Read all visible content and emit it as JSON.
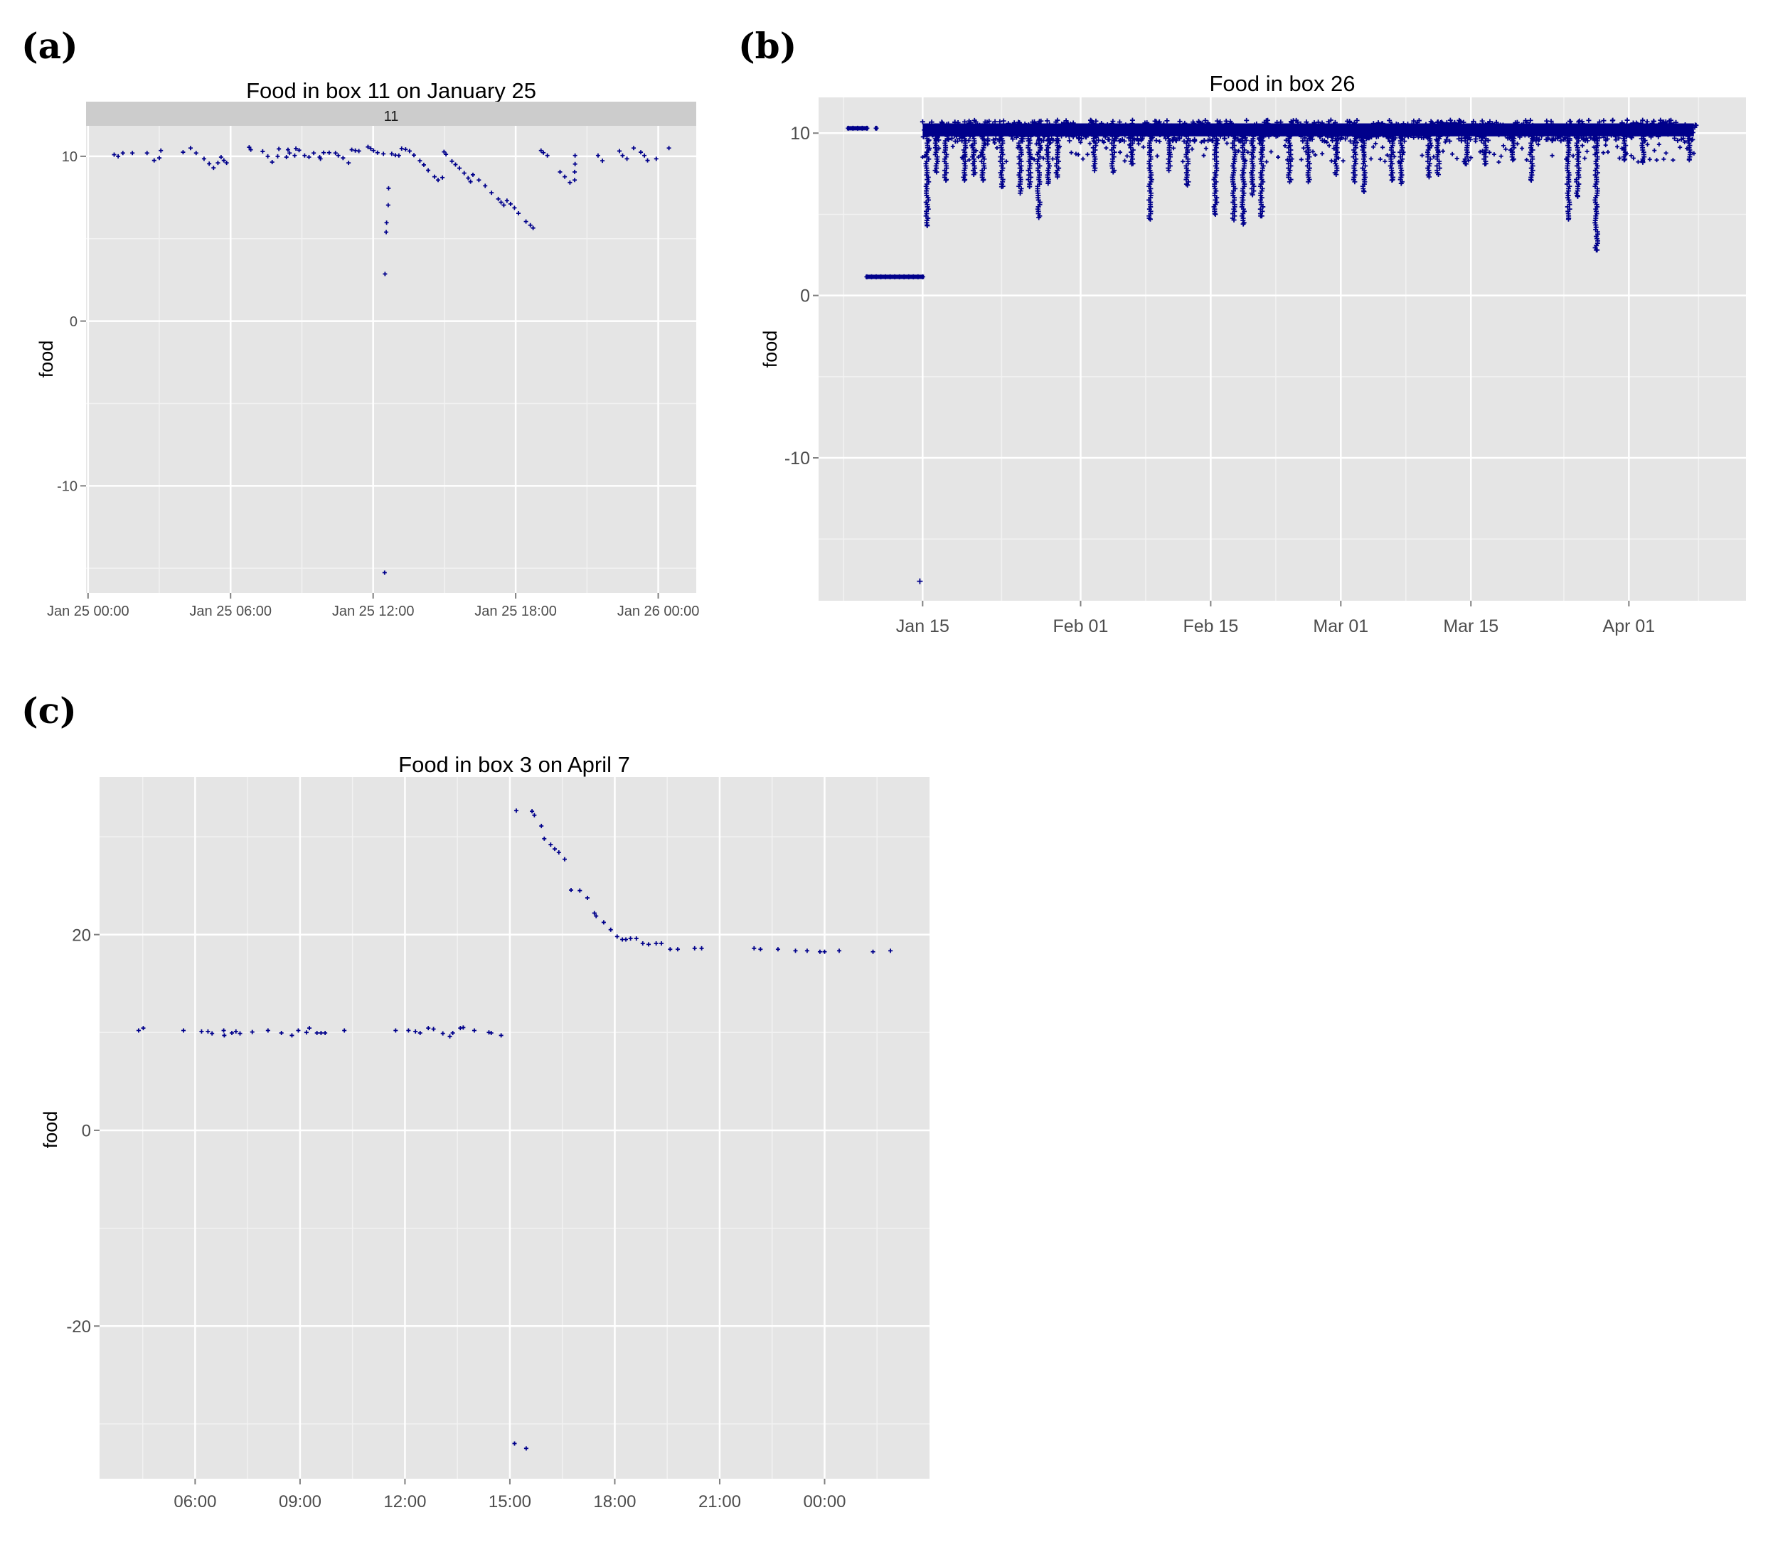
{
  "chart_data": [
    {
      "panel_label": "(a)",
      "type": "scatter",
      "title": "Food in box 11 on January 25",
      "facet_strip": "11",
      "xlabel": "",
      "ylabel": "food",
      "x_ticks": [
        "Jan 25 00:00",
        "Jan 25 06:00",
        "Jan 25 12:00",
        "Jan 25 18:00",
        "Jan 26 00:00"
      ],
      "y_ticks": [
        "10",
        "0",
        "-10"
      ],
      "xlim": [
        "Jan 24 23:55",
        "Jan 26 01:36"
      ],
      "ylim": [
        -16.5,
        11.85
      ],
      "grid": true,
      "marker": "plus",
      "color": "#00008B",
      "date": "Jan 25",
      "points": [
        [
          "01:06",
          10.1
        ],
        [
          "01:16",
          10.0
        ],
        [
          "01:28",
          10.2
        ],
        [
          "01:52",
          10.2
        ],
        [
          "02:29",
          10.2
        ],
        [
          "02:47",
          9.75
        ],
        [
          "03:00",
          9.9
        ],
        [
          "03:04",
          10.35
        ],
        [
          "04:00",
          10.25
        ],
        [
          "04:19",
          10.5
        ],
        [
          "04:33",
          10.2
        ],
        [
          "04:53",
          9.85
        ],
        [
          "05:06",
          9.55
        ],
        [
          "05:17",
          9.3
        ],
        [
          "05:28",
          9.6
        ],
        [
          "05:36",
          9.95
        ],
        [
          "05:43",
          9.75
        ],
        [
          "05:50",
          9.6
        ],
        [
          "06:47",
          10.55
        ],
        [
          "06:51",
          10.4
        ],
        [
          "07:21",
          10.3
        ],
        [
          "07:34",
          10.0
        ],
        [
          "07:45",
          9.65
        ],
        [
          "07:59",
          10.0
        ],
        [
          "08:02",
          10.45
        ],
        [
          "08:21",
          9.95
        ],
        [
          "08:25",
          10.4
        ],
        [
          "08:29",
          10.2
        ],
        [
          "08:42",
          10.05
        ],
        [
          "08:45",
          10.47
        ],
        [
          "08:53",
          10.37
        ],
        [
          "09:07",
          10.05
        ],
        [
          "09:18",
          9.95
        ],
        [
          "09:30",
          10.2
        ],
        [
          "09:45",
          9.95
        ],
        [
          "09:47",
          9.85
        ],
        [
          "09:55",
          10.22
        ],
        [
          "10:09",
          10.22
        ],
        [
          "10:25",
          10.2
        ],
        [
          "10:32",
          10.05
        ],
        [
          "10:44",
          9.9
        ],
        [
          "10:58",
          9.6
        ],
        [
          "11:06",
          10.4
        ],
        [
          "11:15",
          10.35
        ],
        [
          "11:24",
          10.32
        ],
        [
          "11:47",
          10.57
        ],
        [
          "11:54",
          10.47
        ],
        [
          "12:01",
          10.35
        ],
        [
          "12:11",
          10.22
        ],
        [
          "12:26",
          10.15
        ],
        [
          "12:30",
          2.86
        ],
        [
          "12:33",
          5.4
        ],
        [
          "12:34",
          5.97
        ],
        [
          "12:38",
          7.04
        ],
        [
          "12:39",
          8.06
        ],
        [
          "12:29",
          -15.27
        ],
        [
          "12:47",
          10.15
        ],
        [
          "12:56",
          10.07
        ],
        [
          "13:05",
          10.05
        ],
        [
          "13:12",
          10.47
        ],
        [
          "13:22",
          10.42
        ],
        [
          "13:32",
          10.32
        ],
        [
          "13:43",
          10.07
        ],
        [
          "13:58",
          9.73
        ],
        [
          "14:08",
          9.48
        ],
        [
          "14:19",
          9.15
        ],
        [
          "14:35",
          8.76
        ],
        [
          "14:44",
          8.56
        ],
        [
          "14:55",
          8.71
        ],
        [
          "14:59",
          10.27
        ],
        [
          "15:04",
          10.12
        ],
        [
          "15:19",
          9.7
        ],
        [
          "15:28",
          9.5
        ],
        [
          "15:38",
          9.28
        ],
        [
          "15:50",
          8.98
        ],
        [
          "16:00",
          8.68
        ],
        [
          "16:06",
          8.46
        ],
        [
          "16:12",
          8.88
        ],
        [
          "16:27",
          8.56
        ],
        [
          "16:43",
          8.21
        ],
        [
          "16:59",
          7.79
        ],
        [
          "17:16",
          7.41
        ],
        [
          "17:23",
          7.21
        ],
        [
          "17:30",
          7.04
        ],
        [
          "17:38",
          7.31
        ],
        [
          "17:47",
          7.11
        ],
        [
          "17:57",
          6.87
        ],
        [
          "18:07",
          6.54
        ],
        [
          "18:26",
          6.04
        ],
        [
          "18:37",
          5.82
        ],
        [
          "18:44",
          5.65
        ],
        [
          "19:04",
          10.35
        ],
        [
          "19:10",
          10.22
        ],
        [
          "19:20",
          10.05
        ],
        [
          "19:52",
          9.05
        ],
        [
          "20:04",
          8.76
        ],
        [
          "20:17",
          8.41
        ],
        [
          "20:29",
          8.56
        ],
        [
          "20:29",
          9.05
        ],
        [
          "20:30",
          9.53
        ],
        [
          "20:30",
          10.05
        ],
        [
          "21:28",
          10.05
        ],
        [
          "21:39",
          9.73
        ],
        [
          "22:22",
          10.32
        ],
        [
          "22:30",
          10.05
        ],
        [
          "22:41",
          9.85
        ],
        [
          "22:58",
          10.5
        ],
        [
          "23:16",
          10.25
        ],
        [
          "23:25",
          10.05
        ],
        [
          "23:33",
          9.75
        ],
        [
          "23:55",
          9.85
        ],
        [
          "Jan 26 00:27",
          10.5
        ]
      ]
    },
    {
      "panel_label": "(b)",
      "type": "scatter",
      "title": "Food in box 26",
      "xlabel": "",
      "ylabel": "food",
      "x_ticks": [
        "Jan 15",
        "Feb 01",
        "Feb 15",
        "Mar 01",
        "Mar 15",
        "Apr 01"
      ],
      "y_ticks": [
        "10",
        "0",
        "-10"
      ],
      "xlim": [
        "Jan 03",
        "Apr 13"
      ],
      "ylim": [
        -18.8,
        12.2
      ],
      "grid": true,
      "marker": "plus",
      "color": "#00008B",
      "segments": [
        {
          "start": "Jan 07",
          "end": "Jan 09",
          "value": 10.3
        },
        {
          "start": "Jan 10",
          "end": "Jan 10",
          "value": 10.3
        },
        {
          "start": "Jan 09",
          "end": "Jan 15",
          "value": 1.15
        }
      ],
      "band": {
        "start": "Jan 15",
        "end": "Apr 08",
        "low": 9.8,
        "high": 10.6
      },
      "dips": [
        {
          "date": "Jan 15",
          "min": 4.3
        },
        {
          "date": "Jan 16",
          "min": 7.6
        },
        {
          "date": "Jan 17",
          "min": 7.1
        },
        {
          "date": "Jan 19",
          "min": 7.1
        },
        {
          "date": "Jan 20",
          "min": 7.45
        },
        {
          "date": "Jan 21",
          "min": 7.1
        },
        {
          "date": "Jan 23",
          "min": 6.7
        },
        {
          "date": "Jan 25",
          "min": 6.3
        },
        {
          "date": "Jan 26",
          "min": 6.7
        },
        {
          "date": "Jan 27",
          "min": 4.8
        },
        {
          "date": "Jan 28",
          "min": 6.9
        },
        {
          "date": "Jan 29",
          "min": 7.3
        },
        {
          "date": "Feb 02",
          "min": 7.7
        },
        {
          "date": "Feb 04",
          "min": 7.6
        },
        {
          "date": "Feb 06",
          "min": 8.1
        },
        {
          "date": "Feb 08",
          "min": 4.7
        },
        {
          "date": "Feb 10",
          "min": 7.7
        },
        {
          "date": "Feb 12",
          "min": 6.8
        },
        {
          "date": "Feb 15",
          "min": 5.0
        },
        {
          "date": "Feb 17",
          "min": 4.65
        },
        {
          "date": "Feb 18",
          "min": 4.4
        },
        {
          "date": "Feb 19",
          "min": 6.2
        },
        {
          "date": "Feb 20",
          "min": 4.9
        },
        {
          "date": "Feb 23",
          "min": 7.0
        },
        {
          "date": "Feb 25",
          "min": 7.0
        },
        {
          "date": "Feb 28",
          "min": 7.45
        },
        {
          "date": "Mar 02",
          "min": 7.0
        },
        {
          "date": "Mar 03",
          "min": 6.4
        },
        {
          "date": "Mar 06",
          "min": 7.1
        },
        {
          "date": "Mar 07",
          "min": 6.9
        },
        {
          "date": "Mar 10",
          "min": 7.3
        },
        {
          "date": "Mar 11",
          "min": 7.45
        },
        {
          "date": "Mar 14",
          "min": 8.1
        },
        {
          "date": "Mar 16",
          "min": 8.1
        },
        {
          "date": "Mar 19",
          "min": 8.35
        },
        {
          "date": "Mar 21",
          "min": 7.1
        },
        {
          "date": "Mar 25",
          "min": 4.7
        },
        {
          "date": "Mar 26",
          "min": 6.1
        },
        {
          "date": "Mar 28",
          "min": 2.8
        },
        {
          "date": "Mar 31",
          "min": 8.35
        },
        {
          "date": "Apr 02",
          "min": 8.2
        },
        {
          "date": "Apr 07",
          "min": 8.35
        }
      ],
      "outliers": [
        {
          "x": "Jan 15",
          "y": -17.6
        }
      ]
    },
    {
      "panel_label": "(c)",
      "type": "scatter",
      "title": "Food in box 3 on April 7",
      "xlabel": "",
      "ylabel": "food",
      "x_ticks": [
        "06:00",
        "09:00",
        "12:00",
        "15:00",
        "18:00",
        "21:00",
        "00:00"
      ],
      "y_ticks": [
        "20",
        "0",
        "-20"
      ],
      "xlim": [
        "Apr 7 03:16",
        "Apr 8 03:00"
      ],
      "ylim": [
        -35.6,
        36.1
      ],
      "grid": true,
      "marker": "plus",
      "color": "#00008B",
      "date": "Apr 7",
      "points": [
        [
          "04:23",
          10.2
        ],
        [
          "04:31",
          10.45
        ],
        [
          "05:40",
          10.2
        ],
        [
          "06:11",
          10.1
        ],
        [
          "06:22",
          10.1
        ],
        [
          "06:29",
          9.9
        ],
        [
          "06:49",
          10.2
        ],
        [
          "06:50",
          9.7
        ],
        [
          "07:03",
          9.95
        ],
        [
          "07:10",
          10.1
        ],
        [
          "07:17",
          9.9
        ],
        [
          "07:38",
          10.05
        ],
        [
          "08:05",
          10.2
        ],
        [
          "08:28",
          9.95
        ],
        [
          "08:46",
          9.7
        ],
        [
          "08:57",
          10.2
        ],
        [
          "09:11",
          10.0
        ],
        [
          "09:16",
          10.45
        ],
        [
          "09:29",
          9.95
        ],
        [
          "09:36",
          9.95
        ],
        [
          "09:43",
          9.95
        ],
        [
          "10:16",
          10.2
        ],
        [
          "11:44",
          10.2
        ],
        [
          "12:06",
          10.2
        ],
        [
          "12:18",
          10.1
        ],
        [
          "12:26",
          9.95
        ],
        [
          "12:40",
          10.45
        ],
        [
          "12:49",
          10.35
        ],
        [
          "13:05",
          9.9
        ],
        [
          "13:17",
          9.6
        ],
        [
          "13:22",
          9.95
        ],
        [
          "13:35",
          10.45
        ],
        [
          "13:40",
          10.5
        ],
        [
          "13:59",
          10.2
        ],
        [
          "14:24",
          10.0
        ],
        [
          "14:28",
          9.95
        ],
        [
          "14:45",
          9.7
        ],
        [
          "15:08",
          -32.0
        ],
        [
          "15:28",
          -32.5
        ],
        [
          "15:11",
          32.67
        ],
        [
          "15:38",
          32.6
        ],
        [
          "15:42",
          32.2
        ],
        [
          "15:54",
          31.1
        ],
        [
          "15:59",
          29.8
        ],
        [
          "16:10",
          29.2
        ],
        [
          "16:17",
          28.75
        ],
        [
          "16:24",
          28.4
        ],
        [
          "16:34",
          27.7
        ],
        [
          "16:45",
          24.55
        ],
        [
          "17:00",
          24.5
        ],
        [
          "17:13",
          23.75
        ],
        [
          "17:25",
          22.2
        ],
        [
          "17:28",
          21.9
        ],
        [
          "17:41",
          21.25
        ],
        [
          "17:53",
          20.5
        ],
        [
          "18:04",
          19.8
        ],
        [
          "18:13",
          19.5
        ],
        [
          "18:19",
          19.5
        ],
        [
          "18:27",
          19.6
        ],
        [
          "18:37",
          19.6
        ],
        [
          "18:48",
          19.1
        ],
        [
          "18:58",
          19.0
        ],
        [
          "19:11",
          19.1
        ],
        [
          "19:20",
          19.1
        ],
        [
          "19:35",
          18.5
        ],
        [
          "19:48",
          18.5
        ],
        [
          "20:17",
          18.6
        ],
        [
          "20:29",
          18.6
        ],
        [
          "21:59",
          18.6
        ],
        [
          "22:10",
          18.5
        ],
        [
          "22:40",
          18.5
        ],
        [
          "23:10",
          18.35
        ],
        [
          "23:30",
          18.35
        ],
        [
          "23:52",
          18.25
        ],
        [
          "Apr 8 00:00",
          18.25
        ],
        [
          "Apr 8 00:25",
          18.35
        ],
        [
          "Apr 8 01:23",
          18.25
        ],
        [
          "Apr 8 01:53",
          18.35
        ]
      ]
    }
  ]
}
